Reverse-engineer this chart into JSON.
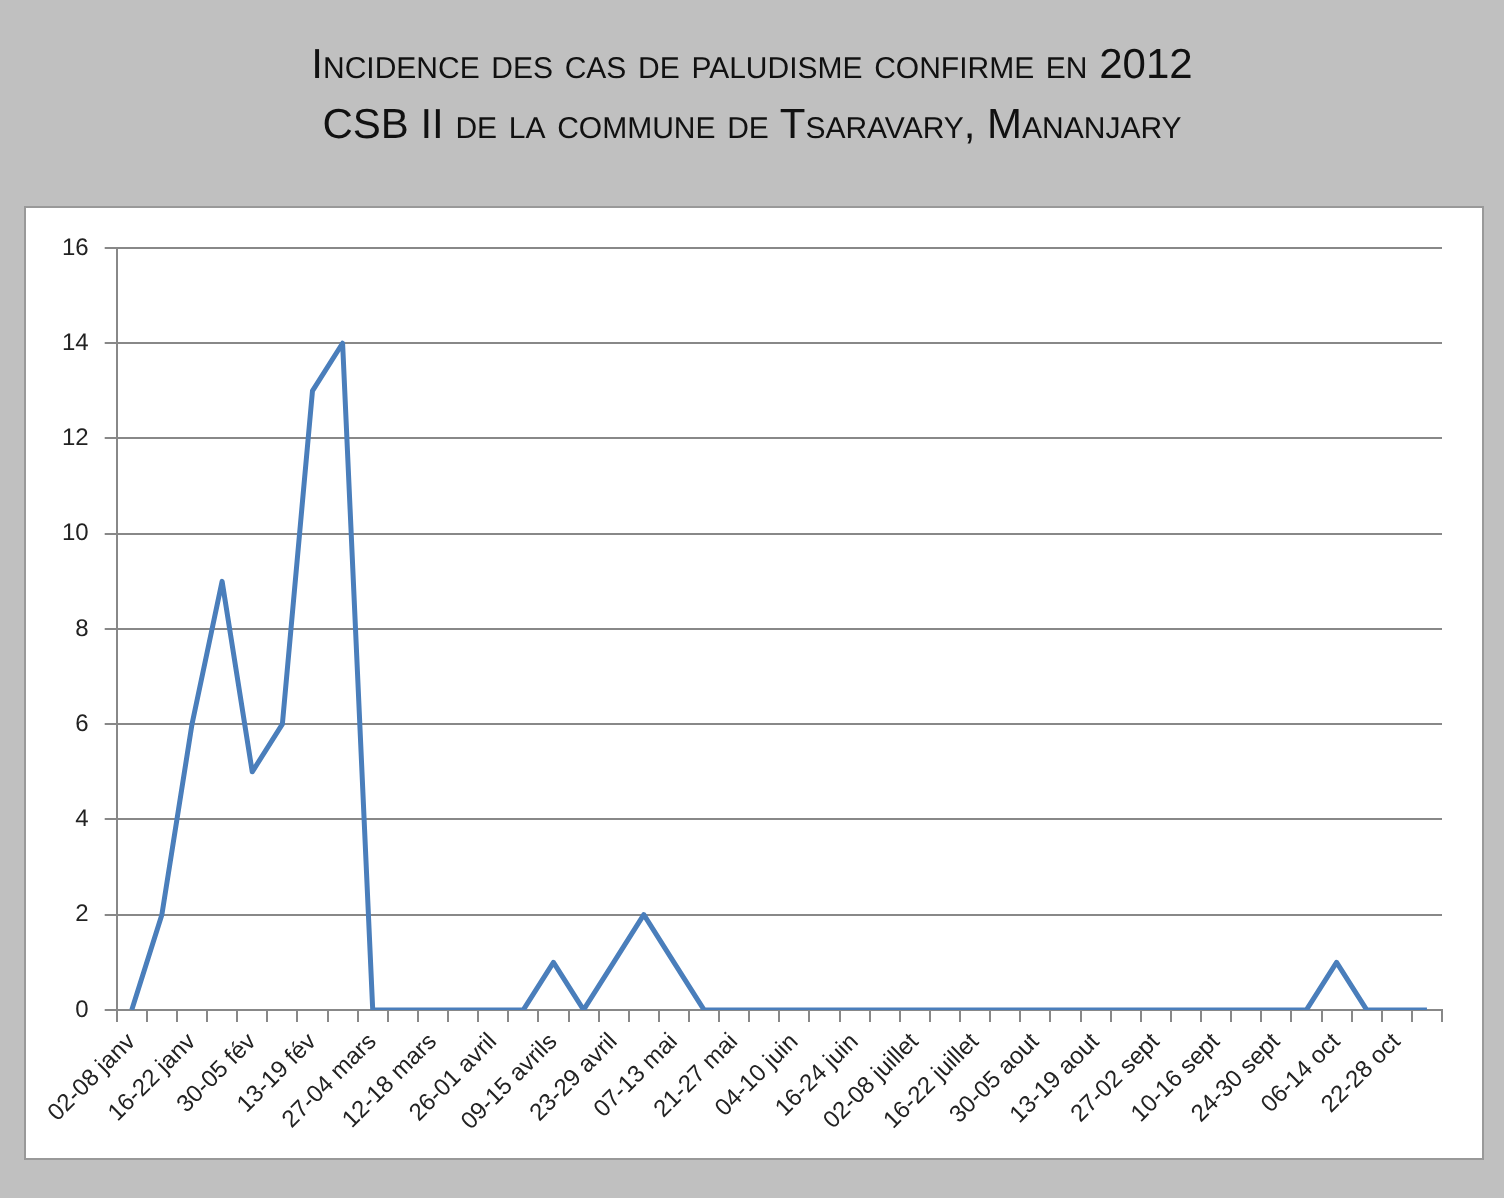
{
  "chart_data": {
    "type": "line",
    "title": "Incidence des cas de paludisme confirme en 2012",
    "subtitle": "CSB II de la commune de Tsaravary, Mananjary",
    "categories": [
      "02-08 janv",
      null,
      "16-22 janv",
      null,
      "30-05 fév",
      null,
      "13-19 fév",
      null,
      "27-04 mars",
      null,
      "12-18 mars",
      null,
      "26-01 avril",
      null,
      "09-15 avrils",
      null,
      "23-29 avril",
      null,
      "07-13 mai",
      null,
      "21-27 mai",
      null,
      "04-10 juin",
      null,
      "16-24 juin",
      null,
      "02-08 juillet",
      null,
      "16-22 juillet",
      null,
      "30-05 aout",
      null,
      "13-19 aout",
      null,
      "27-02 sept",
      null,
      "10-16 sept",
      null,
      "24-30 sept",
      null,
      "06-14 oct",
      null,
      "22-28 oct",
      null
    ],
    "series": [
      {
        "color": "#4a7ebb",
        "values": [
          0,
          2,
          6,
          9,
          5,
          6,
          13,
          14,
          0,
          0,
          0,
          0,
          0,
          0,
          1,
          0,
          1,
          2,
          1,
          0,
          0,
          0,
          0,
          0,
          0,
          0,
          0,
          0,
          0,
          0,
          0,
          0,
          0,
          0,
          0,
          0,
          0,
          0,
          0,
          0,
          1,
          0,
          0,
          0
        ]
      }
    ],
    "ylim": [
      0,
      16
    ],
    "yticks": [
      0,
      2,
      4,
      6,
      8,
      10,
      12,
      14,
      16
    ],
    "grid": "y",
    "legend": false,
    "marker": "none",
    "line_style": "solid"
  }
}
